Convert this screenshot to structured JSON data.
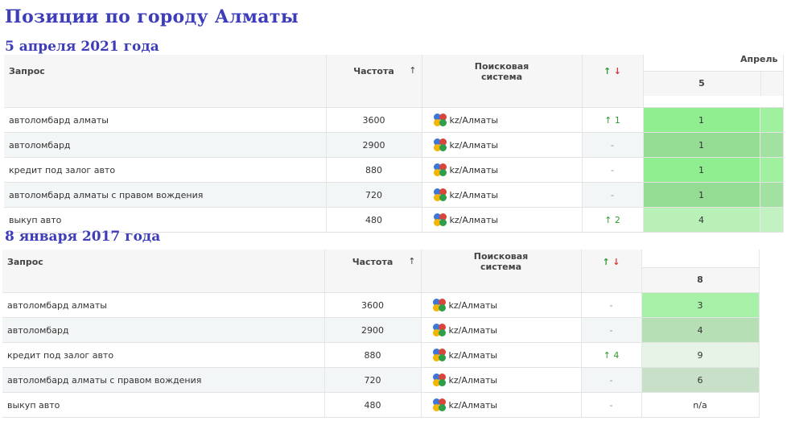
{
  "page": {
    "title": "Позиции по городу Алматы"
  },
  "sections": [
    {
      "date": "5 апреля 2021 года",
      "headers": {
        "query": "Запрос",
        "frequency": "Частота",
        "sort_arrow": "↑",
        "engine_line1": "Поисковая",
        "engine_line2": "система",
        "change_up": "↑",
        "change_down": "↓",
        "month": "Апрель",
        "day": "5"
      },
      "rows": [
        {
          "query": "автоломбард алматы",
          "frequency": "3600",
          "engine": "kz/Алматы",
          "change": "↑ 1",
          "position": "1",
          "color": "#90ee90"
        },
        {
          "query": "автоломбард",
          "frequency": "2900",
          "engine": "kz/Алматы",
          "change": "-",
          "position": "1",
          "color": "#94dc94"
        },
        {
          "query": "кредит под залог авто",
          "frequency": "880",
          "engine": "kz/Алматы",
          "change": "-",
          "position": "1",
          "color": "#90ee90"
        },
        {
          "query": "автоломбард алматы с правом вождения",
          "frequency": "720",
          "engine": "kz/Алматы",
          "change": "-",
          "position": "1",
          "color": "#94dc94"
        },
        {
          "query": "выкуп авто",
          "frequency": "480",
          "engine": "kz/Алматы",
          "change": "↑ 2",
          "position": "4",
          "color": "#b8f0b8"
        }
      ]
    },
    {
      "date": "8 января 2017 года",
      "headers": {
        "query": "Запрос",
        "frequency": "Частота",
        "sort_arrow": "↑",
        "engine_line1": "Поисковая",
        "engine_line2": "система",
        "change_up": "↑",
        "change_down": "↓",
        "day": "8"
      },
      "rows": [
        {
          "query": "автоломбард алматы",
          "frequency": "3600",
          "engine": "kz/Алматы",
          "change": "-",
          "position": "3",
          "color": "#a7f0a7"
        },
        {
          "query": "автоломбард",
          "frequency": "2900",
          "engine": "kz/Алматы",
          "change": "-",
          "position": "4",
          "color": "#b6dfb6"
        },
        {
          "query": "кредит под залог авто",
          "frequency": "880",
          "engine": "kz/Алматы",
          "change": "↑ 4",
          "position": "9",
          "color": "#e6f3e6"
        },
        {
          "query": "автоломбард алматы с правом вождения",
          "frequency": "720",
          "engine": "kz/Алматы",
          "change": "-",
          "position": "6",
          "color": "#c7e0c7"
        },
        {
          "query": "выкуп авто",
          "frequency": "480",
          "engine": "kz/Алматы",
          "change": "-",
          "position": "n/a",
          "color": "#ffffff"
        }
      ]
    }
  ]
}
